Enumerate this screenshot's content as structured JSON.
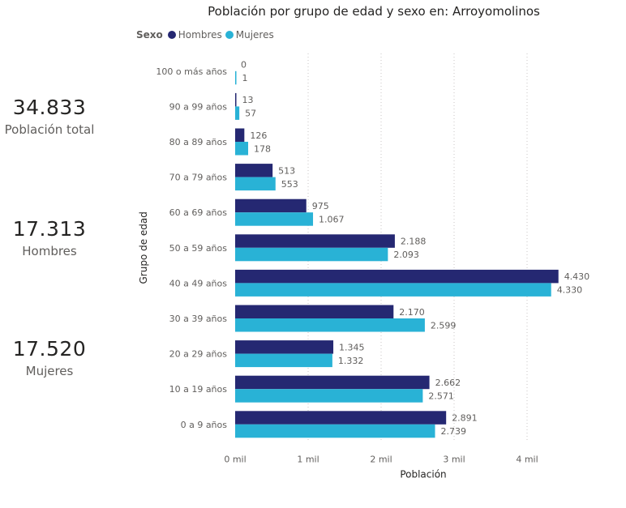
{
  "kpis": [
    {
      "value": "34.833",
      "label": "Población total"
    },
    {
      "value": "17.313",
      "label": "Hombres"
    },
    {
      "value": "17.520",
      "label": "Mujeres"
    }
  ],
  "legend": {
    "title": "Sexo",
    "items": [
      "Hombres",
      "Mujeres"
    ]
  },
  "colors": {
    "hombres": "#252872",
    "mujeres": "#29b2d6"
  },
  "chart_data": {
    "type": "bar",
    "orientation": "horizontal",
    "title": "Población por grupo de edad y sexo en: Arroyomolinos",
    "xlabel": "Población",
    "ylabel": "Grupo de edad",
    "xlim": [
      0,
      4600
    ],
    "x_ticks": [
      "0 mil",
      "1 mil",
      "2 mil",
      "3 mil",
      "4 mil"
    ],
    "x_tick_values": [
      0,
      1000,
      2000,
      3000,
      4000
    ],
    "grid": true,
    "legend_position": "top-left",
    "categories": [
      "100 o más años",
      "90 a 99 años",
      "80 a 89 años",
      "70 a 79 años",
      "60 a 69 años",
      "50 a 59 años",
      "40 a 49 años",
      "30 a 39 años",
      "20 a 29 años",
      "10 a 19 años",
      "0 a 9 años"
    ],
    "series": [
      {
        "name": "Hombres",
        "values": [
          0,
          13,
          126,
          513,
          975,
          2188,
          4430,
          2170,
          1345,
          2662,
          2891
        ],
        "labels": [
          "0",
          "13",
          "126",
          "513",
          "975",
          "2.188",
          "4.430",
          "2.170",
          "1.345",
          "2.662",
          "2.891"
        ]
      },
      {
        "name": "Mujeres",
        "values": [
          1,
          57,
          178,
          553,
          1067,
          2093,
          4330,
          2599,
          1332,
          2571,
          2739
        ],
        "labels": [
          "1",
          "57",
          "178",
          "553",
          "1.067",
          "2.093",
          "4.330",
          "2.599",
          "1.332",
          "2.571",
          "2.739"
        ]
      }
    ]
  }
}
